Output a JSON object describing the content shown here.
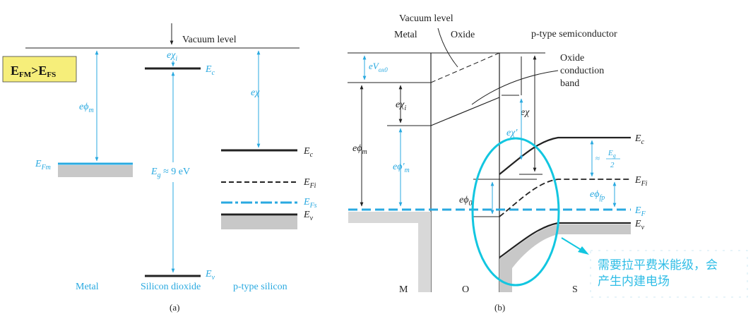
{
  "colors": {
    "cyan": "#29a9e0",
    "ellipse": "#12c6e0",
    "gray": "#c8c8c8",
    "badge_bg": "#f6ee7a",
    "note": "#2fbde6"
  },
  "badge": {
    "main": "E",
    "sub1": "FM",
    "gt": ">E",
    "sub2": "FS"
  },
  "panel_a": {
    "vacuum_level": "Vacuum level",
    "e_chi_i": "eχ",
    "e_chi_i_sub": "i",
    "e_phi_m": "eϕ",
    "e_phi_m_sub": "m",
    "e_chi": "eχ",
    "E_Fm": "E",
    "E_Fm_sub": "Fm",
    "Eg": "E",
    "Eg_sub": "g",
    "Eg_value": " ≈ 9 eV",
    "Ec_oxide": "E",
    "Ec_oxide_sub": "c",
    "Ev_oxide": "E",
    "Ev_oxide_sub": "v",
    "Ec": "E",
    "Ec_sub": "c",
    "EFi": "E",
    "EFi_sub": "Fi",
    "EFs": "E",
    "EFs_sub": "Fs",
    "Ev": "E",
    "Ev_sub": "v",
    "label_metal": "Metal",
    "label_oxide": "Silicon dioxide",
    "label_si": "p-type silicon",
    "caption": "(a)"
  },
  "panel_b": {
    "vacuum_level": "Vacuum level",
    "metal": "Metal",
    "oxide": "Oxide",
    "semiconductor": "p-type semiconductor",
    "oxide_cb_1": "Oxide",
    "oxide_cb_2": "conduction",
    "oxide_cb_3": "band",
    "eVox0": "eV",
    "eVox0_sub": "ox0",
    "e_chi_i": "eχ",
    "e_chi_i_sub": "i",
    "e_phi_m": "eϕ",
    "e_phi_m_sub": "m",
    "e_phi_m_prime": "eϕ′",
    "e_phi_m_prime_sub": "m",
    "e_chi": "eχ",
    "e_chi_prime": "eχ′",
    "e_phi_0": "eϕ",
    "e_phi_0_sub": "0",
    "eg_half_approx": "≈",
    "eg_half_num": "E",
    "eg_half_num_sub": "g",
    "eg_half_den": "2",
    "e_phi_fp": "eϕ",
    "e_phi_fp_sub": "fp",
    "Ec": "E",
    "Ec_sub": "c",
    "EFi": "E",
    "EFi_sub": "Fi",
    "EF": "E",
    "EF_sub": "F",
    "Ev": "E",
    "Ev_sub": "v",
    "M": "M",
    "O": "O",
    "S": "S",
    "caption": "(b)"
  },
  "annotation": {
    "line1": "需要拉平费米能级，会",
    "line2": "产生内建电场"
  }
}
